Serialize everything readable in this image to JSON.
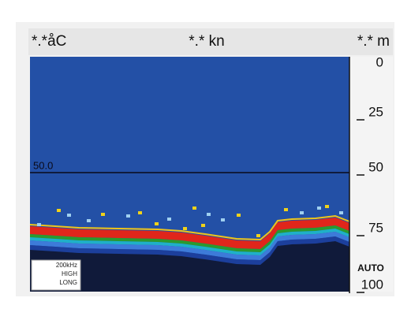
{
  "header": {
    "temperature": "*.*åC",
    "speed": "*.* kn",
    "depth": "*.* m"
  },
  "depth_scale": {
    "ticks": [
      0,
      25,
      50,
      75,
      100
    ],
    "mode": "AUTO"
  },
  "depth_marker": {
    "label": "50.0"
  },
  "info_box": {
    "lines": [
      "200kHz",
      "HIGH",
      "LONG"
    ]
  }
}
